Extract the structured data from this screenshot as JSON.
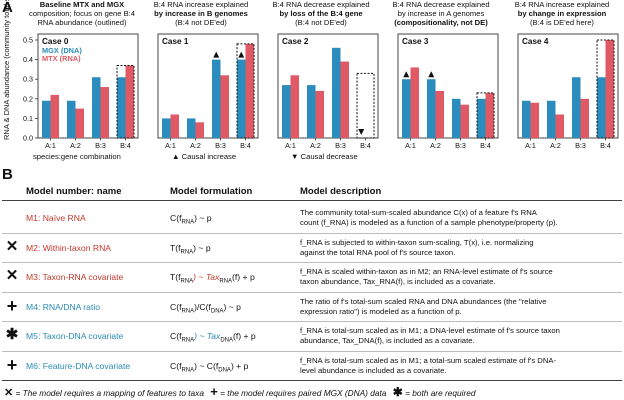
{
  "panel_a": {
    "letter": "A",
    "y_axis_label": "RNA & DNA abundance (community total-sum scaled)",
    "x_axis_label": "species:gene combination",
    "captions": [
      [
        "Baseline MTX and MGX",
        "composition; focus on gene B:4",
        "RNA abundance (outlined)"
      ],
      [
        "B:4 RNA increase explained",
        "by increase in B genomes",
        "(B:4 not DE'ed)"
      ],
      [
        "B:4 RNA decrease explained",
        "by loss of the B:4 gene",
        "(B:4 not DE'ed)"
      ],
      [
        "B:4 RNA decrease explained",
        "by increase in A genomes",
        "(compositionality, not DE)"
      ],
      [
        "B:4 RNA increase explained",
        "by change in expression",
        "(B:4 is DE'ed here)"
      ]
    ],
    "annotations": {
      "causal_increase": "▲ Causal increase",
      "causal_decrease": "▼ Causal decrease"
    }
  },
  "chart_data": {
    "type": "bar",
    "categories": [
      "A:1",
      "A:2",
      "B:3",
      "B:4"
    ],
    "ylim": [
      0,
      0.5
    ],
    "yticks": [
      "0.0",
      "0.1",
      "0.2",
      "0.3",
      "0.4",
      "0.5"
    ],
    "legend": [
      "MGX (DNA)",
      "MTX (RNA)"
    ],
    "colors": {
      "MGX (DNA)": "#2b8cbe",
      "MTX (RNA)": "#e05a66"
    },
    "panels": [
      {
        "title": "Case 0",
        "series": [
          {
            "name": "MGX (DNA)",
            "values": [
              0.19,
              0.19,
              0.31,
              0.31
            ]
          },
          {
            "name": "MTX (RNA)",
            "values": [
              0.22,
              0.15,
              0.26,
              0.37
            ]
          }
        ],
        "outlined": "B:4",
        "markers": []
      },
      {
        "title": "Case 1",
        "series": [
          {
            "name": "MGX (DNA)",
            "values": [
              0.1,
              0.1,
              0.4,
              0.4
            ]
          },
          {
            "name": "MTX (RNA)",
            "values": [
              0.12,
              0.08,
              0.32,
              0.48
            ]
          }
        ],
        "outlined": "B:4",
        "markers": [
          {
            "type": "up",
            "cat": "B:3"
          },
          {
            "type": "up",
            "cat": "B:4"
          }
        ]
      },
      {
        "title": "Case 2",
        "series": [
          {
            "name": "MGX (DNA)",
            "values": [
              0.27,
              0.27,
              0.46,
              0.0
            ]
          },
          {
            "name": "MTX (RNA)",
            "values": [
              0.32,
              0.24,
              0.39,
              0.0
            ]
          }
        ],
        "outlined": "B:4",
        "markers": [
          {
            "type": "down",
            "cat": "B:4"
          }
        ]
      },
      {
        "title": "Case 3",
        "series": [
          {
            "name": "MGX (DNA)",
            "values": [
              0.3,
              0.3,
              0.2,
              0.2
            ]
          },
          {
            "name": "MTX (RNA)",
            "values": [
              0.36,
              0.24,
              0.17,
              0.23
            ]
          }
        ],
        "outlined": "B:4",
        "markers": [
          {
            "type": "up",
            "cat": "A:1"
          },
          {
            "type": "up",
            "cat": "A:2"
          }
        ]
      },
      {
        "title": "Case 4",
        "series": [
          {
            "name": "MGX (DNA)",
            "values": [
              0.19,
              0.19,
              0.31,
              0.31
            ]
          },
          {
            "name": "MTX (RNA)",
            "values": [
              0.18,
              0.12,
              0.2,
              0.5
            ]
          }
        ],
        "outlined": "B:4",
        "markers": []
      }
    ]
  },
  "panel_b": {
    "letter": "B",
    "headers": [
      "Model number: name",
      "Model formulation",
      "Model description"
    ],
    "rows": [
      {
        "symbol": "",
        "name": "M1: Naïve RNA",
        "name_color": "#c0392b",
        "formula": [
          "C(f",
          "RNA",
          ") ~ p"
        ],
        "desc": [
          "The community total-sum-scaled abundance C(x) of a feature f's RNA",
          "count (f_RNA) is modeled as a function of a sample phenotype/property (p)."
        ]
      },
      {
        "symbol": "✕",
        "name": "M2: Within-taxon RNA",
        "name_color": "#c0392b",
        "formula": [
          "T(f",
          "RNA",
          ") ~ p"
        ],
        "desc": [
          "f_RNA is subjected to within-taxon sum-scaling, T(x), i.e. normalizing",
          "against the total RNA pool of f's source taxon."
        ]
      },
      {
        "symbol": "✕",
        "name": "M3: Taxon-RNA covariate",
        "name_color": "#c0392b",
        "formula": [
          "T(f",
          "RNA",
          ") ~ Tax",
          "RNA",
          "(f) + p"
        ],
        "desc": [
          "f_RNA is scaled within-taxon as in M2; an RNA-level estimate of f's source",
          "taxon abundance, Tax_RNA(f), is included as a covariate."
        ]
      },
      {
        "symbol": "+",
        "name": "M4: RNA/DNA ratio",
        "name_color": "#2a8bb5",
        "formula": [
          "C(f",
          "RNA",
          ")/C(f",
          "DNA",
          ") ~ p"
        ],
        "desc": [
          "The ratio of f's total-sum scaled RNA and DNA abundances (the \"relative",
          "expression ratio\") is modeled as a function of p."
        ]
      },
      {
        "symbol": "✱",
        "name": "M5: Taxon-DNA covariate",
        "name_color": "#2a8bb5",
        "formula": [
          "C(f",
          "RNA",
          ") ~ Tax",
          "DNA",
          "(f) + p"
        ],
        "desc": [
          "f_RNA is total-sum scaled as in M1; a DNA-level estimate of f's source taxon",
          "abundance, Tax_DNA(f), is included as a covariate."
        ]
      },
      {
        "symbol": "+",
        "name": "M6: Feature-DNA covariate",
        "name_color": "#2a8bb5",
        "formula": [
          "C(f",
          "RNA",
          ") ~ C(f",
          "DNA",
          ") + p"
        ],
        "desc": [
          "f_RNA is total-sum scaled as in M1; a total-sum scaled estimate of f's DNA-",
          "level abundance is included as a covariate."
        ]
      }
    ],
    "footnote": {
      "taxa_symbol": "✕",
      "taxa_text": "= The model requires a mapping of features to taxa",
      "dna_symbol": "+",
      "dna_text": "= the model requires paired MGX (DNA) data",
      "both_symbol": "✱",
      "both_text": "= both are required"
    }
  }
}
